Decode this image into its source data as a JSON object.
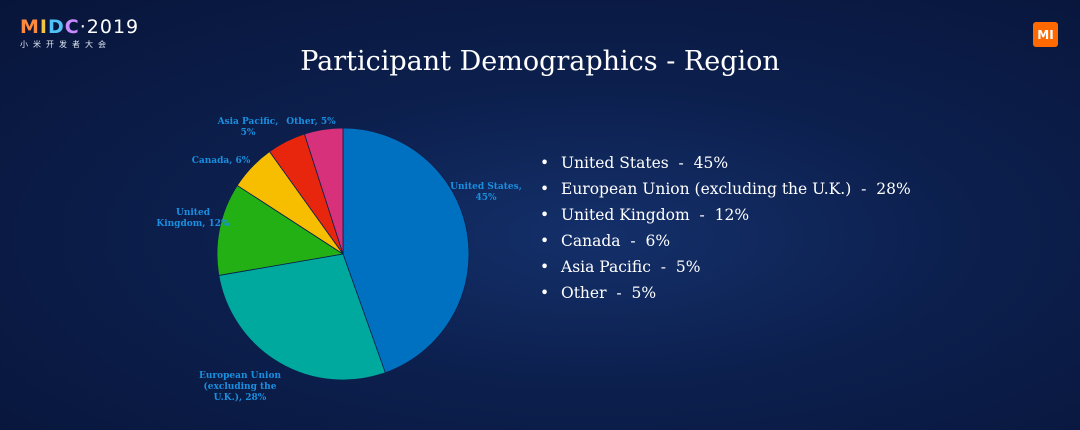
{
  "branding": {
    "event_logo_parts": [
      "M",
      "I",
      "D",
      "C"
    ],
    "event_logo_dot": "·",
    "event_year": "2019",
    "event_subtitle": "小米开发者大会",
    "brand_mark": "MI",
    "brand_color": "#ff6900"
  },
  "slide": {
    "title": "Participant Demographics - Region",
    "bullets": [
      {
        "label": "United States",
        "value": "45%"
      },
      {
        "label": "European Union (excluding the U.K.)",
        "value": "28%"
      },
      {
        "label": "United Kingdom",
        "value": "12%"
      },
      {
        "label": "Canada",
        "value": "6%"
      },
      {
        "label": "Asia Pacific",
        "value": "5%"
      },
      {
        "label": "Other",
        "value": "5%"
      }
    ]
  },
  "chart_data": {
    "type": "pie",
    "title": "",
    "slices": [
      {
        "name": "United States",
        "value": 45,
        "color": "#0070c0",
        "label_lines": [
          "United States,",
          "45%"
        ],
        "label_color": "#1a8fe0"
      },
      {
        "name": "European Union (excluding the U.K.)",
        "value": 28,
        "color": "#00a99d",
        "label_lines": [
          "European Union",
          "(excluding the",
          "U.K.), 28%"
        ],
        "label_color": "#1a8fe0"
      },
      {
        "name": "United Kingdom",
        "value": 12,
        "color": "#22b014",
        "label_lines": [
          "United",
          "Kingdom, 12%"
        ],
        "label_color": "#1a8fe0"
      },
      {
        "name": "Canada",
        "value": 6,
        "color": "#f7be00",
        "label_lines": [
          "Canada, 6%"
        ],
        "label_color": "#1a8fe0"
      },
      {
        "name": "Asia Pacific",
        "value": 5,
        "color": "#e8260e",
        "label_lines": [
          "Asia Pacific,",
          "5%"
        ],
        "label_color": "#1a8fe0"
      },
      {
        "name": "Other",
        "value": 5,
        "color": "#d6317a",
        "label_lines": [
          "Other, 5%"
        ],
        "label_color": "#1a8fe0"
      }
    ],
    "start_angle_deg": 0,
    "direction": "clockwise"
  }
}
